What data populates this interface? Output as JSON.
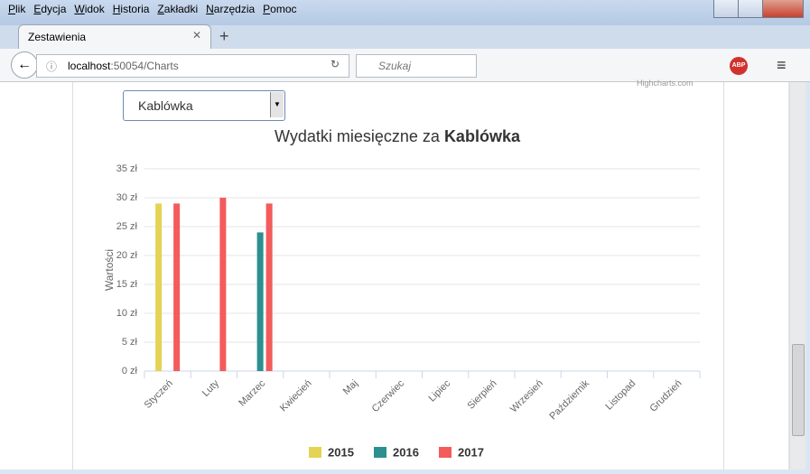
{
  "browser": {
    "menu": [
      "Plik",
      "Edycja",
      "Widok",
      "Historia",
      "Zakładki",
      "Narzędzia",
      "Pomoc"
    ],
    "tab_title": "Zestawienia",
    "url_host": "localhost",
    "url_path": ":50054/Charts",
    "search_placeholder": "Szukaj",
    "adblock_label": "ABP"
  },
  "page": {
    "select_value": "Kablówka",
    "credits": "Highcharts.com"
  },
  "chart_data": {
    "type": "bar",
    "title": "Wydatki miesięczne za",
    "title_emphasis": "Kablówka",
    "y_label": "Wartości",
    "categories": [
      "Styczeń",
      "Luty",
      "Marzec",
      "Kwiecień",
      "Maj",
      "Czerwiec",
      "Lipiec",
      "Sierpień",
      "Wrzesień",
      "Październik",
      "Listopad",
      "Grudzień"
    ],
    "series": [
      {
        "name": "2015",
        "color": "#e4d354",
        "values": [
          29,
          null,
          null,
          null,
          null,
          null,
          null,
          null,
          null,
          null,
          null,
          null
        ]
      },
      {
        "name": "2016",
        "color": "#2b908f",
        "values": [
          null,
          null,
          24,
          null,
          null,
          null,
          null,
          null,
          null,
          null,
          null,
          null
        ]
      },
      {
        "name": "2017",
        "color": "#f45b5b",
        "values": [
          29,
          30,
          29,
          null,
          null,
          null,
          null,
          null,
          null,
          null,
          null,
          null
        ]
      }
    ],
    "ylim": [
      0,
      35
    ],
    "yticks": [
      {
        "value": 0,
        "label": "0 zł"
      },
      {
        "value": 5,
        "label": "5 zł"
      },
      {
        "value": 10,
        "label": "10 zł"
      },
      {
        "value": 15,
        "label": "15 zł"
      },
      {
        "value": 20,
        "label": "20 zł"
      },
      {
        "value": 25,
        "label": "25 zł"
      },
      {
        "value": 30,
        "label": "30 zł"
      },
      {
        "value": 35,
        "label": "35 zł"
      }
    ],
    "grid": true
  }
}
